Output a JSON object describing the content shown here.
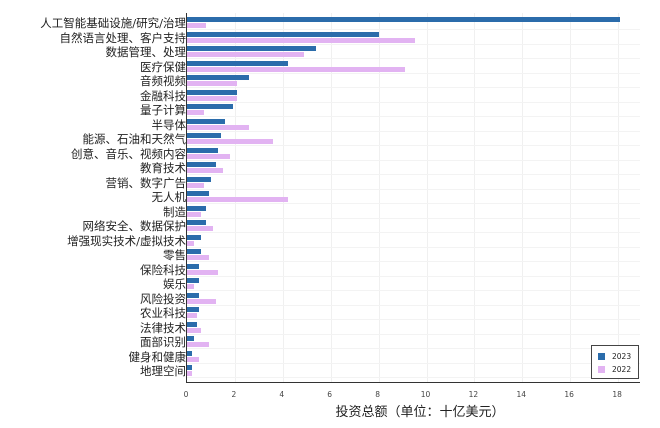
{
  "chart_data": {
    "type": "bar",
    "orientation": "horizontal",
    "title": "",
    "xlabel": "投资总额（单位：十亿美元）",
    "ylabel": "",
    "xlim": [
      0,
      19
    ],
    "xticks": [
      0,
      2,
      4,
      6,
      8,
      10,
      12,
      14,
      16,
      18
    ],
    "grid": true,
    "legend_position": "lower right",
    "categories": [
      "人工智能基础设施/研究/治理",
      "自然语言处理、客户支持",
      "数据管理、处理",
      "医疗保健",
      "音频视频",
      "金融科技",
      "量子计算",
      "半导体",
      "能源、石油和天然气",
      "创意、音乐、视频内容",
      "教育技术",
      "营销、数字广告",
      "无人机",
      "制造",
      "网络安全、数据保护",
      "增强现实技术/虚拟技术",
      "零售",
      "保险科技",
      "娱乐",
      "风险投资",
      "农业科技",
      "法律技术",
      "面部识别",
      "健身和健康",
      "地理空间"
    ],
    "series": [
      {
        "name": "2023",
        "color": "#2b6cab",
        "values": [
          18.1,
          8.0,
          5.4,
          4.2,
          2.6,
          2.1,
          1.9,
          1.6,
          1.4,
          1.3,
          1.2,
          1.0,
          0.9,
          0.8,
          0.8,
          0.6,
          0.6,
          0.5,
          0.5,
          0.5,
          0.5,
          0.4,
          0.3,
          0.2,
          0.2
        ]
      },
      {
        "name": "2022",
        "color": "#e2b3f2",
        "values": [
          0.8,
          9.5,
          4.9,
          9.1,
          2.1,
          2.1,
          0.7,
          2.6,
          3.6,
          1.8,
          1.5,
          0.7,
          4.2,
          0.6,
          1.1,
          0.3,
          0.9,
          1.3,
          0.3,
          1.2,
          0.4,
          0.6,
          0.9,
          0.5,
          0.2
        ]
      }
    ]
  },
  "legend": {
    "items": [
      {
        "label": "2023",
        "color": "#2b6cab"
      },
      {
        "label": "2022",
        "color": "#e2b3f2"
      }
    ]
  }
}
